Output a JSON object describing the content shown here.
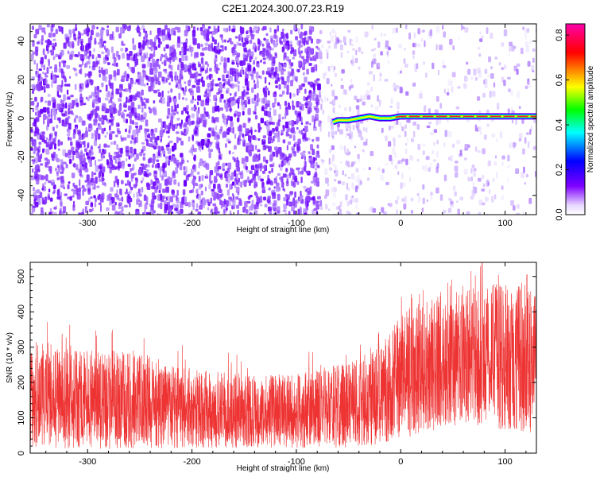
{
  "chart_data": [
    {
      "type": "heatmap",
      "title": "C2E1.2024.300.07.23.R19",
      "xlabel": "Height of straight line (km)",
      "ylabel": "Frequency (Hz)",
      "xlim": [
        -355,
        130
      ],
      "ylim": [
        -50,
        49
      ],
      "xticks": [
        -300,
        -200,
        -100,
        0,
        100
      ],
      "yticks": [
        -40,
        -20,
        0,
        20,
        40
      ],
      "colorbar": {
        "label": "Normalized spectral amplitude",
        "range": [
          0.0,
          0.85
        ],
        "ticks": [
          0.0,
          0.2,
          0.4,
          0.6,
          0.8
        ],
        "colors": [
          "#ffffff",
          "#7f00ff",
          "#0000ff",
          "#00ffff",
          "#00ff00",
          "#ffff00",
          "#ff0000",
          "#ff00ff"
        ]
      },
      "signal_line": {
        "description_points_x": [
          -65,
          -60,
          -50,
          -40,
          -30,
          -20,
          -10,
          0,
          20,
          50,
          80,
          100,
          130
        ],
        "description_points_y": [
          -2,
          -1,
          -1,
          0,
          1,
          0,
          0,
          1,
          1,
          1,
          1,
          1,
          1
        ]
      }
    },
    {
      "type": "line",
      "xlabel": "Height of straight line (km)",
      "ylabel": "SNR (10 * v/v)",
      "xlim": [
        -355,
        130
      ],
      "ylim": [
        0,
        540
      ],
      "xticks": [
        -300,
        -200,
        -100,
        0,
        100
      ],
      "yticks": [
        0,
        100,
        200,
        300,
        400,
        500
      ],
      "series": [
        {
          "color": "#ee3333",
          "envelope_x": [
            -355,
            -300,
            -250,
            -200,
            -150,
            -100,
            -50,
            -20,
            0,
            30,
            60,
            90,
            130
          ],
          "envelope_center": [
            140,
            140,
            135,
            125,
            110,
            115,
            125,
            150,
            210,
            240,
            250,
            260,
            250
          ],
          "envelope_low": [
            15,
            12,
            12,
            15,
            15,
            15,
            15,
            20,
            40,
            60,
            70,
            70,
            55
          ],
          "envelope_high": [
            320,
            300,
            280,
            240,
            220,
            225,
            260,
            300,
            400,
            440,
            460,
            480,
            470
          ],
          "spike_peak": {
            "x": 78,
            "y": 538
          }
        }
      ]
    }
  ]
}
